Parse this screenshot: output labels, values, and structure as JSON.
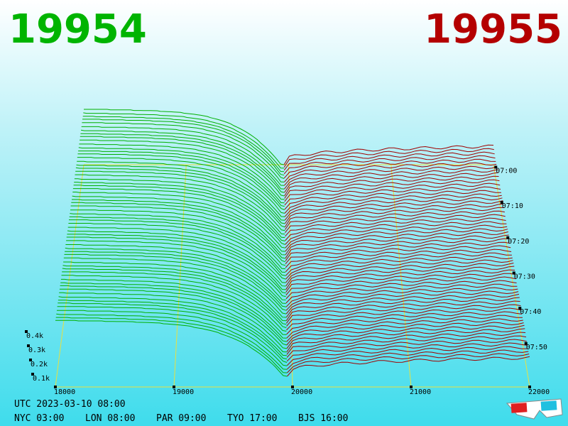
{
  "bid_price": "19954",
  "ask_price": "19955",
  "price_axis": {
    "ticks": [
      18000,
      19000,
      20000,
      21000,
      22000
    ]
  },
  "depth_axis": {
    "ticks": [
      "0.1k",
      "0.2k",
      "0.3k",
      "0.4k"
    ]
  },
  "time_axis": {
    "ticks": [
      "07:00",
      "07:10",
      "07:20",
      "07:30",
      "07:40",
      "07:50"
    ]
  },
  "footer": {
    "utc": "UTC 2023-03-10 08:00",
    "zones": [
      "NYC 03:00",
      "LON 08:00",
      "PAR 09:00",
      "TYO 17:00",
      "BJS 16:00"
    ]
  }
}
